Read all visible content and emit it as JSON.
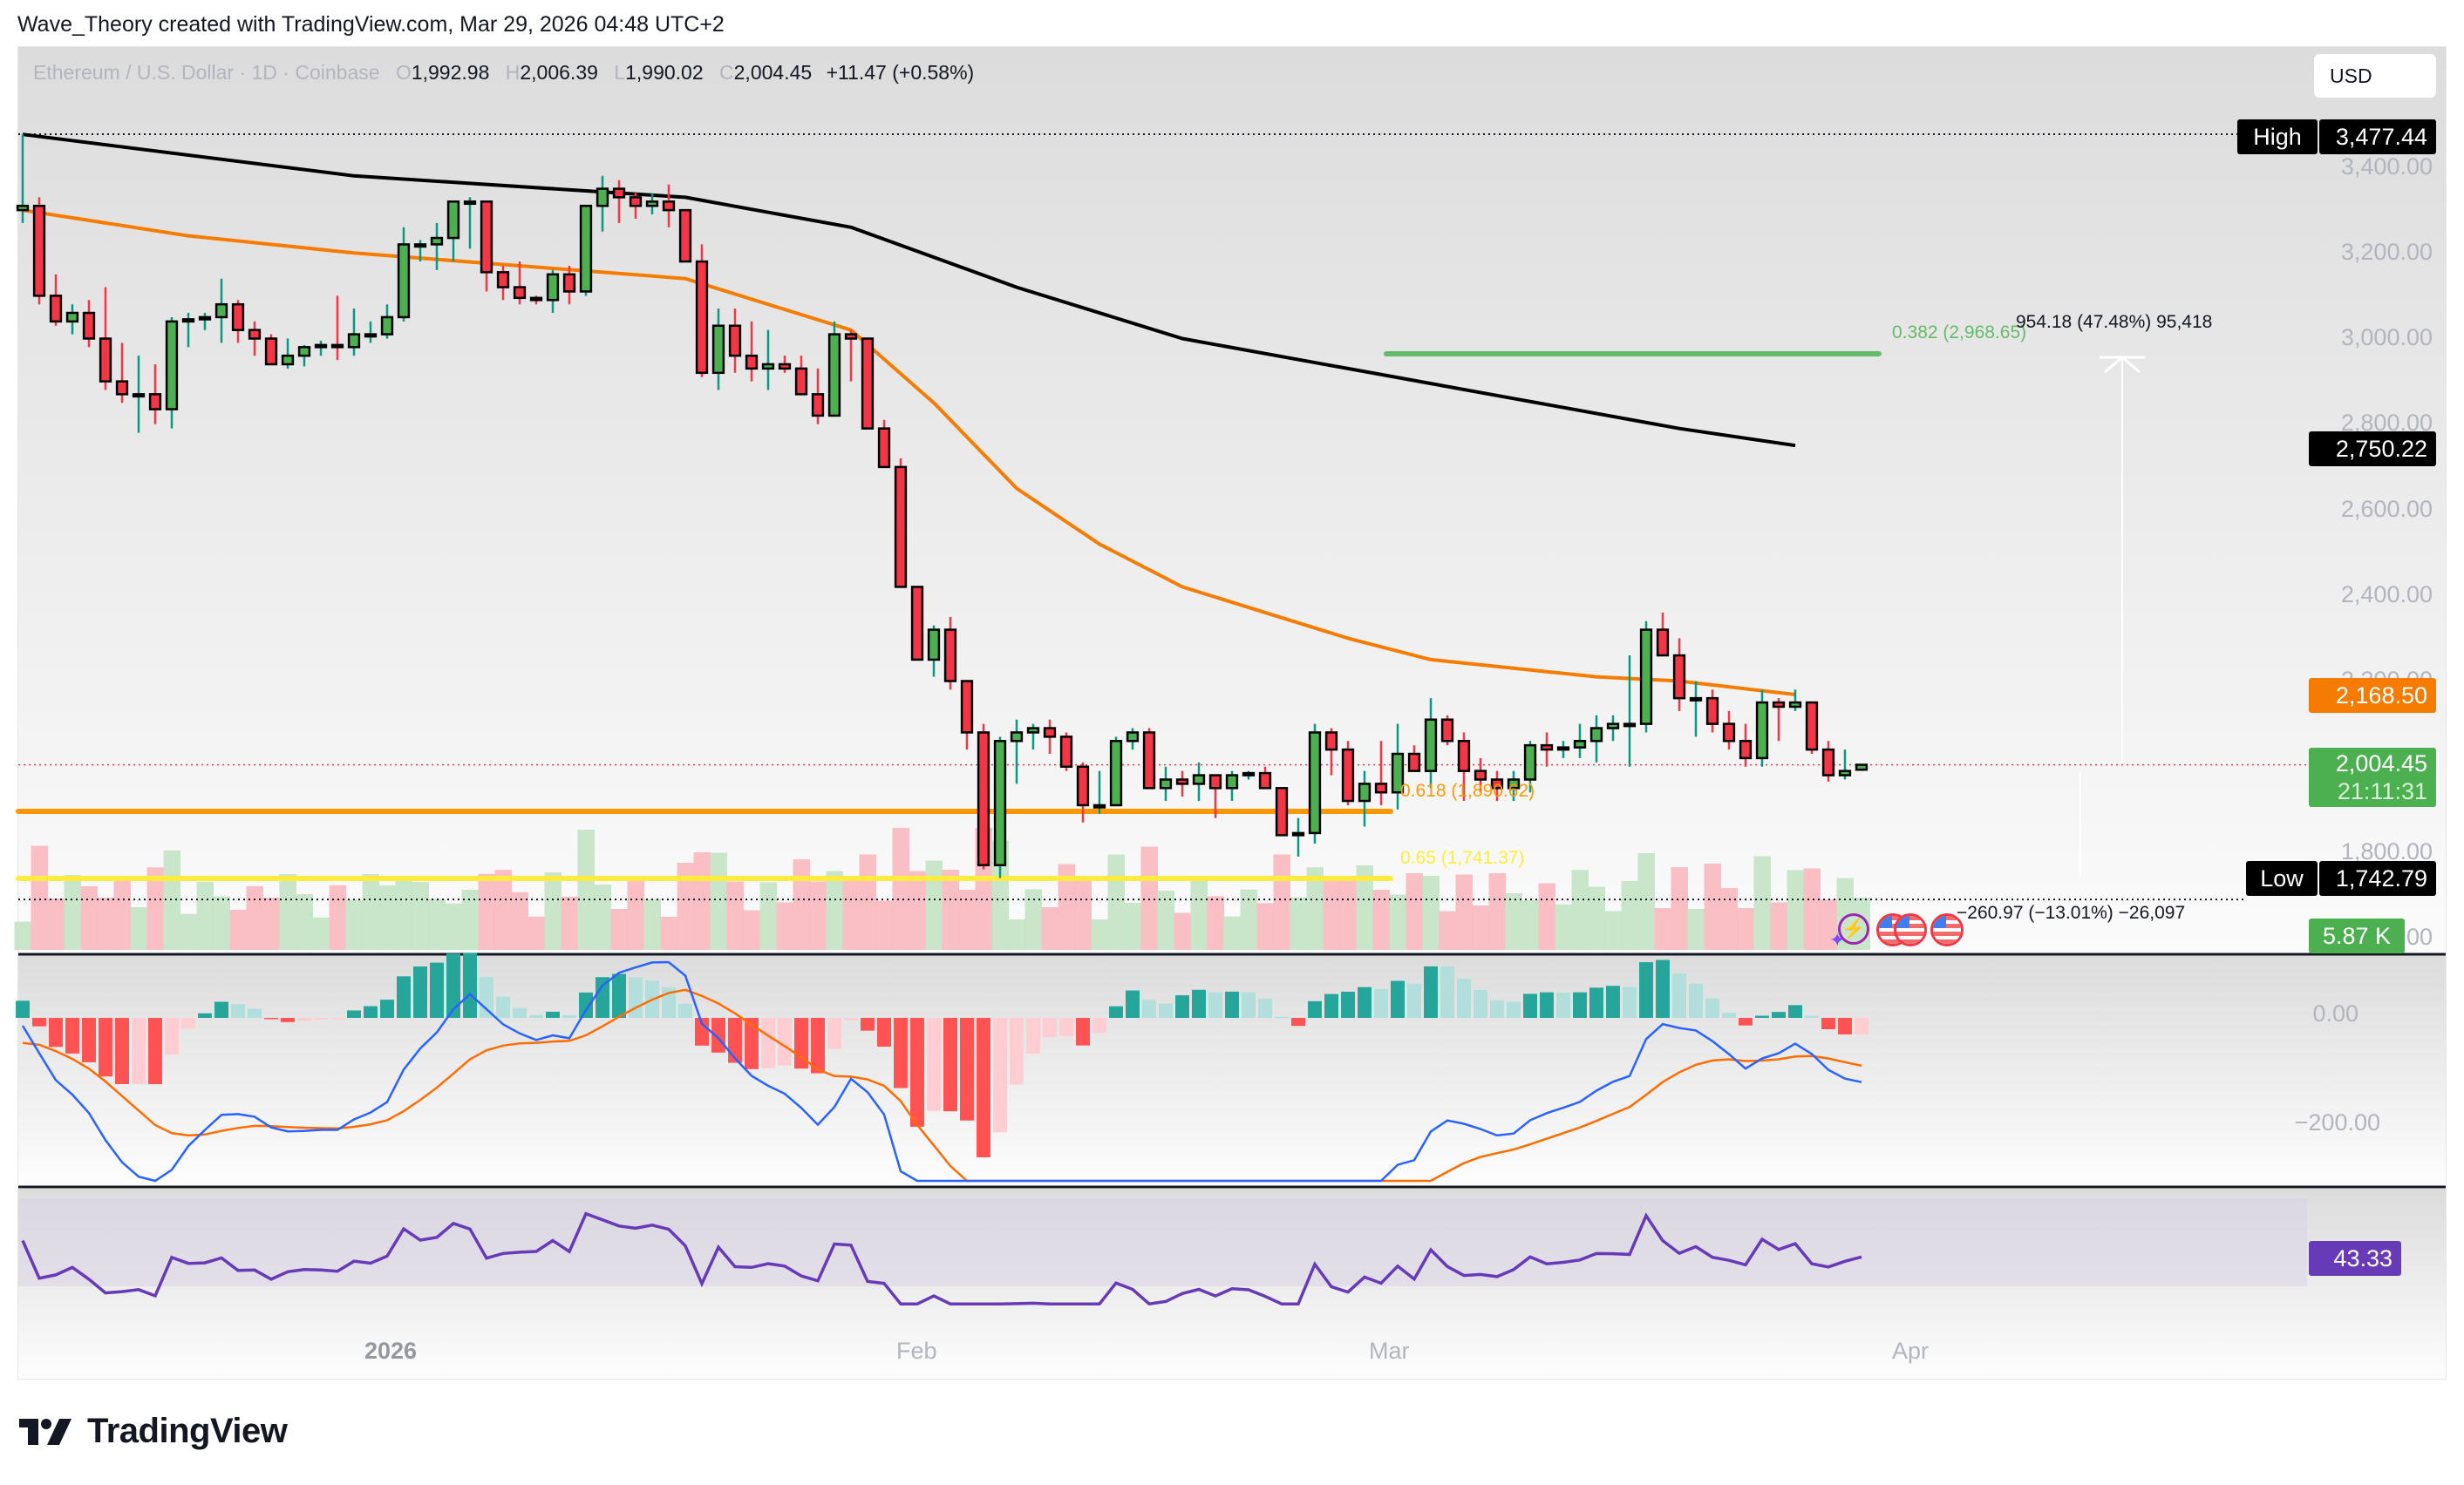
{
  "header": {
    "credit": "Wave_Theory created with TradingView.com, Mar 29, 2026 04:48 UTC+2"
  },
  "legend": {
    "symbol": "Ethereum / U.S. Dollar · 1D · Coinbase",
    "open_label": "O",
    "open": "1,992.98",
    "high_label": "H",
    "high": "2,006.39",
    "low_label": "L",
    "low": "1,990.02",
    "close_label": "C",
    "close": "2,004.45",
    "change": "+11.47 (+0.58%)"
  },
  "currency_button": "USD",
  "price_axis": {
    "ticks": [
      "3,400.00",
      "3,200.00",
      "3,000.00",
      "2,800.00",
      "2,600.00",
      "2,400.00",
      "2,200.00",
      "1,800.00",
      "1,600.00"
    ],
    "high_tag": {
      "label": "High",
      "value": "3,477.44"
    },
    "low_tag": {
      "label": "Low",
      "value": "1,742.79"
    },
    "ema200_tag": "2,750.22",
    "ema50_tag": "2,168.50",
    "last_price_tag": "2,004.45",
    "countdown": "21:11:31",
    "volume_tag": "5.87 K"
  },
  "macd_axis": {
    "ticks": [
      "0.00",
      "−200.00"
    ]
  },
  "rsi_axis": {
    "value_tag": "43.33"
  },
  "time_axis": {
    "labels": [
      "2026",
      "Feb",
      "Mar",
      "Apr"
    ]
  },
  "annotations": {
    "fib_0382": "0.382 (2,968.65)",
    "fib_0618": "0.618 (1,890.62)",
    "fib_065": "0.65 (1,741.37)",
    "measure_up": "954.18 (47.48%) 95,418",
    "measure_down": "−260.97 (−13.01%) −26,097"
  },
  "colors": {
    "up": "#4caf50",
    "down": "#f23645",
    "up_wick": "#089981",
    "down_wick": "#f23645",
    "ema50": "#f57c00",
    "ema200": "#000000",
    "fib_0382": "#66bb6a",
    "fib_0618": "#ff9800",
    "fib_065": "#ffeb3b",
    "macd": "#2962ff",
    "signal": "#ff6d00",
    "rsi": "#673ab7",
    "hist_up_strong": "#26a69a",
    "hist_up_weak": "#b2dfdb",
    "hist_dn_strong": "#ff5252",
    "hist_dn_weak": "#ffcdd2"
  },
  "logo": {
    "text": "TradingView"
  },
  "chart_data": {
    "type": "candlestick",
    "title": "Ethereum / U.S. Dollar · 1D · Coinbase",
    "ylabel": "USD",
    "ylim": [
      1600,
      3500
    ],
    "x_labels": [
      "2026",
      "Feb",
      "Mar",
      "Apr"
    ],
    "candles": [
      [
        3300,
        3477,
        3270,
        3310
      ],
      [
        3310,
        3330,
        3080,
        3100
      ],
      [
        3100,
        3150,
        3030,
        3040
      ],
      [
        3040,
        3080,
        3010,
        3060
      ],
      [
        3060,
        3090,
        2980,
        3000
      ],
      [
        3000,
        3120,
        2880,
        2900
      ],
      [
        2900,
        2990,
        2850,
        2870
      ],
      [
        2870,
        2960,
        2780,
        2870
      ],
      [
        2870,
        2940,
        2800,
        2835
      ],
      [
        2835,
        3050,
        2790,
        3040
      ],
      [
        3040,
        3060,
        2980,
        3045
      ],
      [
        3045,
        3060,
        3020,
        3050
      ],
      [
        3050,
        3140,
        2990,
        3080
      ],
      [
        3080,
        3090,
        2990,
        3020
      ],
      [
        3020,
        3040,
        2960,
        3000
      ],
      [
        3000,
        3010,
        2950,
        2940
      ],
      [
        2940,
        3000,
        2930,
        2960
      ],
      [
        2960,
        2985,
        2935,
        2980
      ],
      [
        2980,
        2995,
        2960,
        2985
      ],
      [
        2985,
        3100,
        2950,
        2980
      ],
      [
        2980,
        3070,
        2960,
        3010
      ],
      [
        3010,
        3040,
        2990,
        3010
      ],
      [
        3010,
        3080,
        3000,
        3050
      ],
      [
        3050,
        3260,
        3040,
        3220
      ],
      [
        3220,
        3230,
        3180,
        3220
      ],
      [
        3220,
        3270,
        3160,
        3235
      ],
      [
        3235,
        3300,
        3180,
        3320
      ],
      [
        3320,
        3330,
        3210,
        3320
      ],
      [
        3320,
        3310,
        3110,
        3155
      ],
      [
        3155,
        3170,
        3090,
        3120
      ],
      [
        3120,
        3180,
        3080,
        3095
      ],
      [
        3095,
        3100,
        3080,
        3090
      ],
      [
        3090,
        3160,
        3060,
        3150
      ],
      [
        3150,
        3170,
        3080,
        3110
      ],
      [
        3110,
        3310,
        3100,
        3310
      ],
      [
        3310,
        3380,
        3250,
        3350
      ],
      [
        3350,
        3370,
        3270,
        3330
      ],
      [
        3330,
        3340,
        3280,
        3310
      ],
      [
        3310,
        3340,
        3290,
        3320
      ],
      [
        3320,
        3360,
        3260,
        3300
      ],
      [
        3300,
        3300,
        3180,
        3180
      ],
      [
        3180,
        3220,
        2910,
        2920
      ],
      [
        2920,
        3070,
        2880,
        3030
      ],
      [
        3030,
        3070,
        2920,
        2960
      ],
      [
        2960,
        3040,
        2900,
        2930
      ],
      [
        2930,
        3020,
        2880,
        2940
      ],
      [
        2940,
        2960,
        2920,
        2930
      ],
      [
        2930,
        2960,
        2880,
        2870
      ],
      [
        2870,
        2930,
        2800,
        2820
      ],
      [
        2820,
        3040,
        2820,
        3010
      ],
      [
        3010,
        3020,
        2900,
        3000
      ],
      [
        3000,
        2990,
        2800,
        2790
      ],
      [
        2790,
        2810,
        2700,
        2700
      ],
      [
        2700,
        2720,
        2420,
        2420
      ],
      [
        2420,
        2420,
        2250,
        2250
      ],
      [
        2250,
        2330,
        2210,
        2320
      ],
      [
        2320,
        2350,
        2180,
        2200
      ],
      [
        2200,
        2180,
        2040,
        2080
      ],
      [
        2080,
        2100,
        1760,
        1770
      ],
      [
        1770,
        2070,
        1740,
        2060
      ],
      [
        2060,
        2110,
        1960,
        2080
      ],
      [
        2080,
        2100,
        2040,
        2090
      ],
      [
        2090,
        2110,
        2030,
        2070
      ],
      [
        2070,
        2080,
        1990,
        2000
      ],
      [
        2000,
        2010,
        1870,
        1910
      ],
      [
        1910,
        1990,
        1890,
        1910
      ],
      [
        1910,
        2070,
        1910,
        2060
      ],
      [
        2060,
        2090,
        2040,
        2080
      ],
      [
        2080,
        2090,
        1980,
        1950
      ],
      [
        1950,
        2000,
        1920,
        1970
      ],
      [
        1970,
        1990,
        1930,
        1960
      ],
      [
        1960,
        2010,
        1920,
        1980
      ],
      [
        1980,
        1950,
        1880,
        1950
      ],
      [
        1950,
        1990,
        1920,
        1980
      ],
      [
        1980,
        1990,
        1970,
        1985
      ],
      [
        1985,
        2000,
        1950,
        1950
      ],
      [
        1950,
        1940,
        1840,
        1840
      ],
      [
        1840,
        1880,
        1790,
        1845
      ],
      [
        1845,
        2100,
        1820,
        2080
      ],
      [
        2080,
        2090,
        1980,
        2040
      ],
      [
        2040,
        2060,
        1910,
        1920
      ],
      [
        1920,
        1990,
        1860,
        1960
      ],
      [
        1960,
        2060,
        1910,
        1940
      ],
      [
        1940,
        2100,
        1900,
        2030
      ],
      [
        2030,
        2050,
        1990,
        1990
      ],
      [
        1990,
        2160,
        1950,
        2110
      ],
      [
        2110,
        2120,
        2050,
        2060
      ],
      [
        2060,
        2080,
        1920,
        1990
      ],
      [
        1990,
        2020,
        1940,
        1970
      ],
      [
        1970,
        1990,
        1920,
        1950
      ],
      [
        1950,
        1990,
        1920,
        1970
      ],
      [
        1970,
        2060,
        1940,
        2050
      ],
      [
        2050,
        2080,
        2000,
        2040
      ],
      [
        2040,
        2060,
        2020,
        2045
      ],
      [
        2045,
        2100,
        2020,
        2060
      ],
      [
        2060,
        2120,
        2010,
        2090
      ],
      [
        2090,
        2120,
        2060,
        2100
      ],
      [
        2100,
        2260,
        2000,
        2100
      ],
      [
        2100,
        2340,
        2080,
        2320
      ],
      [
        2320,
        2360,
        2260,
        2260
      ],
      [
        2260,
        2300,
        2130,
        2160
      ],
      [
        2160,
        2200,
        2070,
        2160
      ],
      [
        2160,
        2180,
        2080,
        2100
      ],
      [
        2100,
        2130,
        2040,
        2060
      ],
      [
        2060,
        2100,
        2000,
        2020
      ],
      [
        2020,
        2180,
        2000,
        2150
      ],
      [
        2150,
        2160,
        2060,
        2140
      ],
      [
        2140,
        2180,
        2130,
        2150
      ],
      [
        2150,
        2150,
        2030,
        2040
      ],
      [
        2040,
        2060,
        1965,
        1980
      ],
      [
        1980,
        2040,
        1970,
        1990
      ],
      [
        1992.98,
        2006.39,
        1990.02,
        2004.45
      ]
    ],
    "ema50_anchor": [
      [
        0,
        3300
      ],
      [
        10,
        3240
      ],
      [
        20,
        3200
      ],
      [
        30,
        3170
      ],
      [
        40,
        3140
      ],
      [
        50,
        3020
      ],
      [
        55,
        2850
      ],
      [
        60,
        2650
      ],
      [
        65,
        2520
      ],
      [
        70,
        2420
      ],
      [
        80,
        2300
      ],
      [
        85,
        2250
      ],
      [
        90,
        2230
      ],
      [
        95,
        2210
      ],
      [
        100,
        2200
      ],
      [
        107,
        2168.5
      ]
    ],
    "ema200_anchor": [
      [
        0,
        3477
      ],
      [
        20,
        3380
      ],
      [
        40,
        3330
      ],
      [
        50,
        3260
      ],
      [
        60,
        3120
      ],
      [
        70,
        3000
      ],
      [
        80,
        2930
      ],
      [
        90,
        2860
      ],
      [
        100,
        2790
      ],
      [
        107,
        2750.22
      ]
    ],
    "fib_levels": [
      {
        "ratio": 0.382,
        "price": 2968.65
      },
      {
        "ratio": 0.618,
        "price": 1890.62
      },
      {
        "ratio": 0.65,
        "price": 1741.37
      }
    ],
    "macd": {
      "ylim": [
        -300,
        80
      ],
      "ticks": [
        0,
        -200
      ]
    },
    "rsi": {
      "last": 43.33,
      "band": [
        30,
        70
      ]
    }
  }
}
